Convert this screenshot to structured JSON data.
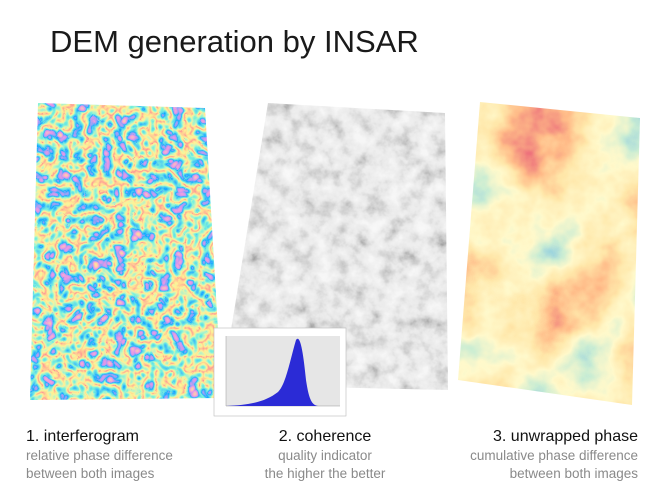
{
  "title": "DEM generation by INSAR",
  "panels": [
    {
      "label": "1. interferogram",
      "description": [
        "relative phase difference",
        "between both images"
      ]
    },
    {
      "label": "2. coherence",
      "description": [
        "quality indicator",
        "the higher the better"
      ]
    },
    {
      "label": "3. unwrapped phase",
      "description": [
        "cumulative phase difference",
        "between both images"
      ]
    }
  ]
}
